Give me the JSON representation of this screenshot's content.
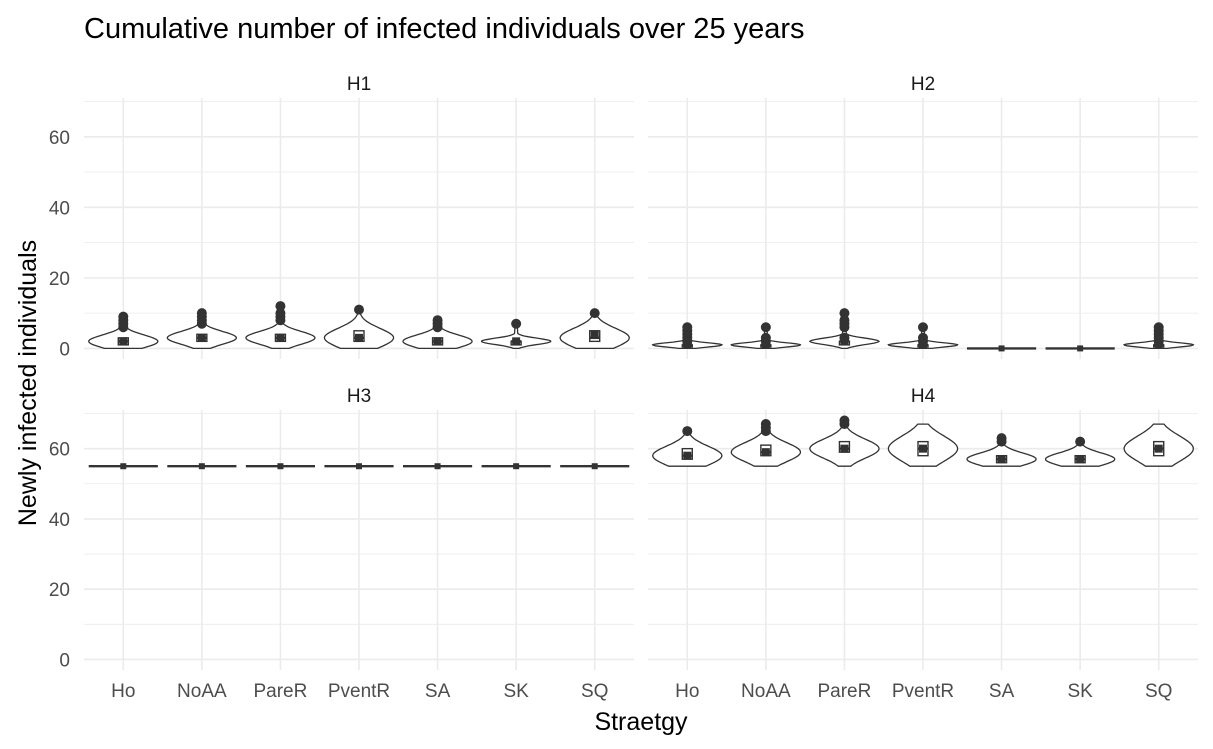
{
  "chart_data": {
    "type": "violin",
    "title": "Cumulative number of infected individuals over 25 years",
    "xlabel": "Straetgy",
    "ylabel": "Newly infected individuals",
    "ylim": [
      -3,
      71
    ],
    "yticks": [
      0,
      20,
      40,
      60
    ],
    "categories": [
      "Ho",
      "NoAA",
      "PareR",
      "PventR",
      "SA",
      "SK",
      "SQ"
    ],
    "grid": true,
    "panels": [
      {
        "name": "H1",
        "groups": [
          {
            "category": "Ho",
            "min": 0,
            "max": 9,
            "q1": 1,
            "median": 2,
            "q3": 3,
            "mean": 2,
            "outliers": [
              6,
              7,
              8,
              9
            ]
          },
          {
            "category": "NoAA",
            "min": 0,
            "max": 10,
            "q1": 2,
            "median": 3,
            "q3": 4,
            "mean": 3,
            "outliers": [
              7,
              8,
              9,
              10
            ]
          },
          {
            "category": "PareR",
            "min": 0,
            "max": 12,
            "q1": 2,
            "median": 3,
            "q3": 4,
            "mean": 3,
            "outliers": [
              8,
              9,
              10,
              12
            ]
          },
          {
            "category": "PventR",
            "min": 0,
            "max": 11,
            "q1": 2,
            "median": 3,
            "q3": 5,
            "mean": 3,
            "outliers": [
              11
            ]
          },
          {
            "category": "SA",
            "min": 0,
            "max": 8,
            "q1": 1,
            "median": 2,
            "q3": 3,
            "mean": 2,
            "outliers": [
              6,
              7,
              8
            ]
          },
          {
            "category": "SK",
            "min": 0,
            "max": 7,
            "q1": 1,
            "median": 2,
            "q3": 2,
            "mean": 2,
            "outliers": [
              7
            ]
          },
          {
            "category": "SQ",
            "min": 0,
            "max": 10,
            "q1": 2,
            "median": 3,
            "q3": 5,
            "mean": 4,
            "outliers": [
              10
            ]
          }
        ]
      },
      {
        "name": "H2",
        "groups": [
          {
            "category": "Ho",
            "min": 0,
            "max": 6,
            "q1": 1,
            "median": 1,
            "q3": 1,
            "mean": 1,
            "outliers": [
              2,
              3,
              4,
              5,
              6
            ]
          },
          {
            "category": "NoAA",
            "min": 0,
            "max": 6,
            "q1": 1,
            "median": 1,
            "q3": 1,
            "mean": 1,
            "outliers": [
              2,
              3,
              6
            ]
          },
          {
            "category": "PareR",
            "min": 0,
            "max": 10,
            "q1": 1,
            "median": 2,
            "q3": 2,
            "mean": 2,
            "outliers": [
              3,
              6,
              7,
              8,
              10
            ]
          },
          {
            "category": "PventR",
            "min": 0,
            "max": 6,
            "q1": 1,
            "median": 1,
            "q3": 1,
            "mean": 1,
            "outliers": [
              2,
              3,
              6
            ]
          },
          {
            "category": "SA",
            "min": 0,
            "max": 0,
            "q1": 0,
            "median": 0,
            "q3": 0,
            "mean": 0,
            "outliers": []
          },
          {
            "category": "SK",
            "min": 0,
            "max": 0,
            "q1": 0,
            "median": 0,
            "q3": 0,
            "mean": 0,
            "outliers": []
          },
          {
            "category": "SQ",
            "min": 0,
            "max": 6,
            "q1": 1,
            "median": 1,
            "q3": 1,
            "mean": 1,
            "outliers": [
              2,
              3,
              4,
              5,
              6
            ]
          }
        ]
      },
      {
        "name": "H3",
        "groups": [
          {
            "category": "Ho",
            "min": 55,
            "max": 55,
            "q1": 55,
            "median": 55,
            "q3": 55,
            "mean": 55,
            "outliers": []
          },
          {
            "category": "NoAA",
            "min": 55,
            "max": 55,
            "q1": 55,
            "median": 55,
            "q3": 55,
            "mean": 55,
            "outliers": []
          },
          {
            "category": "PareR",
            "min": 55,
            "max": 55,
            "q1": 55,
            "median": 55,
            "q3": 55,
            "mean": 55,
            "outliers": []
          },
          {
            "category": "PventR",
            "min": 55,
            "max": 55,
            "q1": 55,
            "median": 55,
            "q3": 55,
            "mean": 55,
            "outliers": []
          },
          {
            "category": "SA",
            "min": 55,
            "max": 55,
            "q1": 55,
            "median": 55,
            "q3": 55,
            "mean": 55,
            "outliers": []
          },
          {
            "category": "SK",
            "min": 55,
            "max": 55,
            "q1": 55,
            "median": 55,
            "q3": 55,
            "mean": 55,
            "outliers": []
          },
          {
            "category": "SQ",
            "min": 55,
            "max": 55,
            "q1": 55,
            "median": 55,
            "q3": 55,
            "mean": 55,
            "outliers": []
          }
        ]
      },
      {
        "name": "H4",
        "groups": [
          {
            "category": "Ho",
            "min": 55,
            "max": 65,
            "q1": 57,
            "median": 58,
            "q3": 60,
            "mean": 58,
            "outliers": [
              65
            ]
          },
          {
            "category": "NoAA",
            "min": 55,
            "max": 67,
            "q1": 58,
            "median": 59,
            "q3": 61,
            "mean": 59,
            "outliers": [
              65,
              66,
              67
            ]
          },
          {
            "category": "PareR",
            "min": 55,
            "max": 68,
            "q1": 59,
            "median": 60,
            "q3": 62,
            "mean": 60,
            "outliers": [
              67,
              68
            ]
          },
          {
            "category": "PventR",
            "min": 55,
            "max": 67,
            "q1": 58,
            "median": 60,
            "q3": 62,
            "mean": 60,
            "outliers": []
          },
          {
            "category": "SA",
            "min": 55,
            "max": 63,
            "q1": 56,
            "median": 57,
            "q3": 58,
            "mean": 57,
            "outliers": [
              62,
              63
            ]
          },
          {
            "category": "SK",
            "min": 55,
            "max": 62,
            "q1": 56,
            "median": 57,
            "q3": 58,
            "mean": 57,
            "outliers": [
              62
            ]
          },
          {
            "category": "SQ",
            "min": 55,
            "max": 67,
            "q1": 58,
            "median": 60,
            "q3": 62,
            "mean": 60,
            "outliers": []
          }
        ]
      }
    ]
  }
}
